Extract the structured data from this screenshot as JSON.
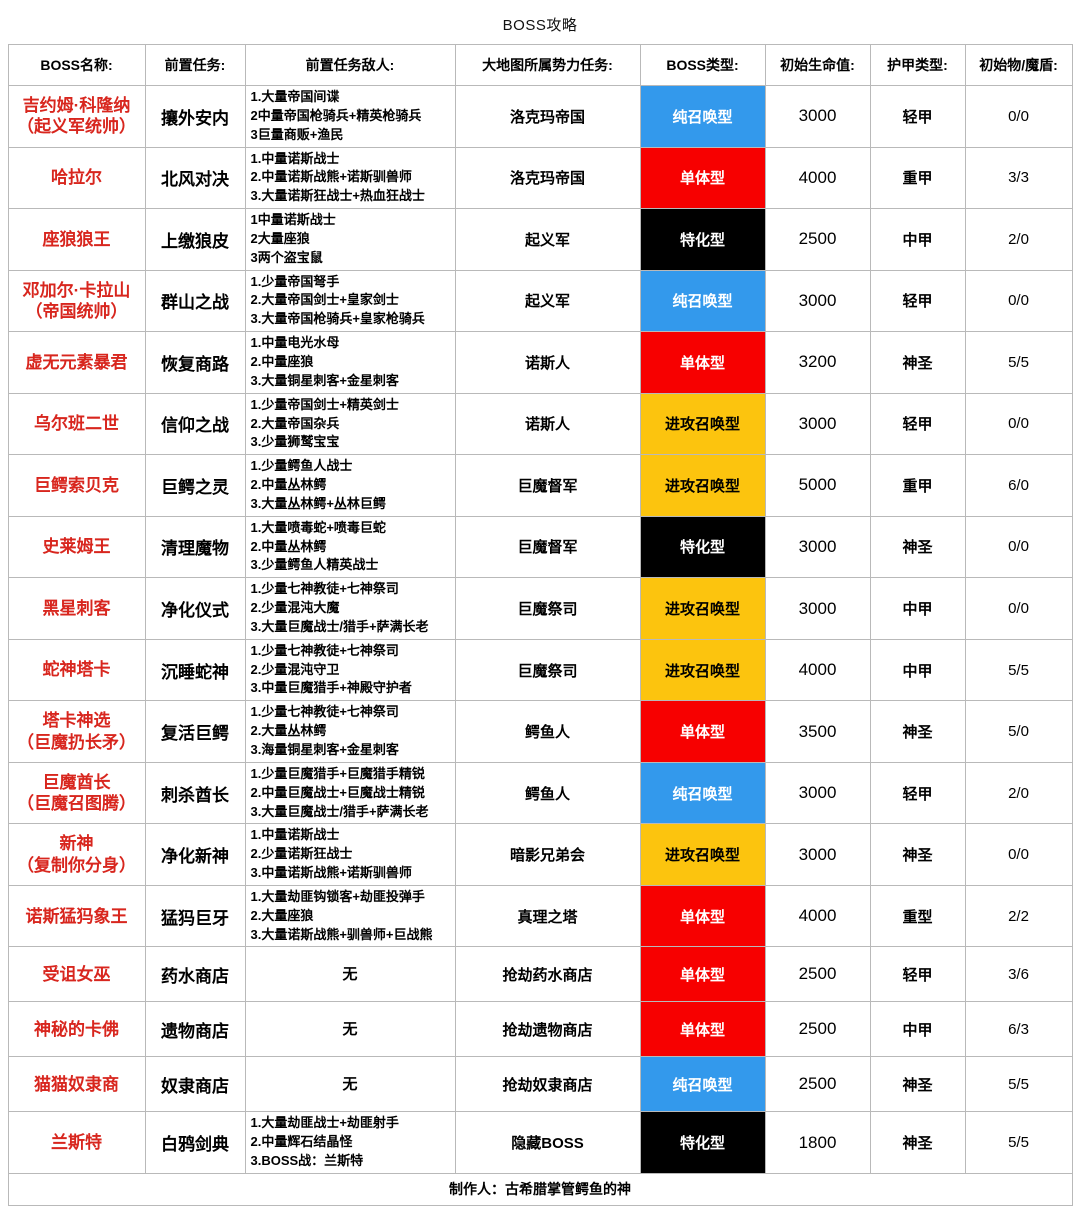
{
  "title": "BOSS攻略",
  "footer": "制作人：古希腊掌管鳄鱼的神",
  "colors": {
    "pure_summon": "#3399EC",
    "single_target": "#F70000",
    "specialized": "#000000",
    "attack_summon": "#FCC40E",
    "boss_name_text": "#D8261E",
    "grid_border": "#B9B9B9"
  },
  "type_text_colors": {
    "pure_summon": "#FFFFFF",
    "single_target": "#FFFFFF",
    "specialized": "#FFFFFF",
    "attack_summon": "#000000"
  },
  "columns": [
    "BOSS名称:",
    "前置任务:",
    "前置任务敌人:",
    "大地图所属势力任务:",
    "BOSS类型:",
    "初始生命值:",
    "护甲类型:",
    "初始物/魔盾:"
  ],
  "rows": [
    {
      "name": "吉约姆·科隆纳\n（起义军统帅）",
      "task": "攘外安内",
      "enemies": "1.大量帝国间谍\n2中量帝国枪骑兵+精英枪骑兵\n3巨量商贩+渔民",
      "faction": "洛克玛帝国",
      "type": "纯召唤型",
      "type_key": "pure_summon",
      "hp": "3000",
      "armor": "轻甲",
      "shield": "0/0"
    },
    {
      "name": "哈拉尔",
      "task": "北风对决",
      "enemies": "1.中量诺斯战士\n2.中量诺斯战熊+诺斯驯兽师\n3.大量诺斯狂战士+热血狂战士",
      "faction": "洛克玛帝国",
      "type": "单体型",
      "type_key": "single_target",
      "hp": "4000",
      "armor": "重甲",
      "shield": "3/3"
    },
    {
      "name": "座狼狼王",
      "task": "上缴狼皮",
      "enemies": "1中量诺斯战士\n2大量座狼\n3两个盗宝鼠",
      "faction": "起义军",
      "type": "特化型",
      "type_key": "specialized",
      "hp": "2500",
      "armor": "中甲",
      "shield": "2/0"
    },
    {
      "name": "邓加尔·卡拉山\n（帝国统帅）",
      "task": "群山之战",
      "enemies": "1.少量帝国弩手\n2.大量帝国剑士+皇家剑士\n3.大量帝国枪骑兵+皇家枪骑兵",
      "faction": "起义军",
      "type": "纯召唤型",
      "type_key": "pure_summon",
      "hp": "3000",
      "armor": "轻甲",
      "shield": "0/0"
    },
    {
      "name": "虚无元素暴君",
      "task": "恢复商路",
      "enemies": "1.中量电光水母\n2.中量座狼\n3.大量铜星刺客+金星刺客",
      "faction": "诺斯人",
      "type": "单体型",
      "type_key": "single_target",
      "hp": "3200",
      "armor": "神圣",
      "shield": "5/5"
    },
    {
      "name": "乌尔班二世",
      "task": "信仰之战",
      "enemies": "1.少量帝国剑士+精英剑士\n2.大量帝国杂兵\n3.少量狮鹫宝宝",
      "faction": "诺斯人",
      "type": "进攻召唤型",
      "type_key": "attack_summon",
      "hp": "3000",
      "armor": "轻甲",
      "shield": "0/0"
    },
    {
      "name": "巨鳄索贝克",
      "task": "巨鳄之灵",
      "enemies": "1.少量鳄鱼人战士\n2.中量丛林鳄\n3.大量丛林鳄+丛林巨鳄",
      "faction": "巨魔督军",
      "type": "进攻召唤型",
      "type_key": "attack_summon",
      "hp": "5000",
      "armor": "重甲",
      "shield": "6/0"
    },
    {
      "name": "史莱姆王",
      "task": "清理魔物",
      "enemies": "1.大量喷毒蛇+喷毒巨蛇\n2.中量丛林鳄\n3.少量鳄鱼人精英战士",
      "faction": "巨魔督军",
      "type": "特化型",
      "type_key": "specialized",
      "hp": "3000",
      "armor": "神圣",
      "shield": "0/0"
    },
    {
      "name": "黑星刺客",
      "task": "净化仪式",
      "enemies": "1.少量七神教徒+七神祭司\n2.少量混沌大魔\n3.大量巨魔战士/猎手+萨满长老",
      "faction": "巨魔祭司",
      "type": "进攻召唤型",
      "type_key": "attack_summon",
      "hp": "3000",
      "armor": "中甲",
      "shield": "0/0"
    },
    {
      "name": "蛇神塔卡",
      "task": "沉睡蛇神",
      "enemies": "1.少量七神教徒+七神祭司\n2.少量混沌守卫\n3.中量巨魔猎手+神殿守护者",
      "faction": "巨魔祭司",
      "type": "进攻召唤型",
      "type_key": "attack_summon",
      "hp": "4000",
      "armor": "中甲",
      "shield": "5/5"
    },
    {
      "name": "塔卡神选\n（巨魔扔长矛）",
      "task": "复活巨鳄",
      "enemies": "1.少量七神教徒+七神祭司\n2.大量丛林鳄\n3.海量铜星刺客+金星刺客",
      "faction": "鳄鱼人",
      "type": "单体型",
      "type_key": "single_target",
      "hp": "3500",
      "armor": "神圣",
      "shield": "5/0"
    },
    {
      "name": "巨魔酋长\n（巨魔召图腾）",
      "task": "刺杀酋长",
      "enemies": "1.少量巨魔猎手+巨魔猎手精锐\n2.中量巨魔战士+巨魔战士精锐\n3.大量巨魔战士/猎手+萨满长老",
      "faction": "鳄鱼人",
      "type": "纯召唤型",
      "type_key": "pure_summon",
      "hp": "3000",
      "armor": "轻甲",
      "shield": "2/0"
    },
    {
      "name": "新神\n（复制你分身）",
      "task": "净化新神",
      "enemies": "1.中量诺斯战士\n2.少量诺斯狂战士\n3.中量诺斯战熊+诺斯驯兽师",
      "faction": "暗影兄弟会",
      "type": "进攻召唤型",
      "type_key": "attack_summon",
      "hp": "3000",
      "armor": "神圣",
      "shield": "0/0"
    },
    {
      "name": "诺斯猛犸象王",
      "task": "猛犸巨牙",
      "enemies": "1.大量劫匪钩锁客+劫匪投弹手\n2.大量座狼\n3.大量诺斯战熊+驯兽师+巨战熊",
      "faction": "真理之塔",
      "type": "单体型",
      "type_key": "single_target",
      "hp": "4000",
      "armor": "重型",
      "shield": "2/2"
    },
    {
      "name": "受诅女巫",
      "task": "药水商店",
      "enemies": "无",
      "faction": "抢劫药水商店",
      "type": "单体型",
      "type_key": "single_target",
      "hp": "2500",
      "armor": "轻甲",
      "shield": "3/6"
    },
    {
      "name": "神秘的卡佛",
      "task": "遗物商店",
      "enemies": "无",
      "faction": "抢劫遗物商店",
      "type": "单体型",
      "type_key": "single_target",
      "hp": "2500",
      "armor": "中甲",
      "shield": "6/3"
    },
    {
      "name": "猫猫奴隶商",
      "task": "奴隶商店",
      "enemies": "无",
      "faction": "抢劫奴隶商店",
      "type": "纯召唤型",
      "type_key": "pure_summon",
      "hp": "2500",
      "armor": "神圣",
      "shield": "5/5"
    },
    {
      "name": "兰斯特",
      "task": "白鸦剑典",
      "enemies": "1.大量劫匪战士+劫匪射手\n2.中量辉石结晶怪\n3.BOSS战：兰斯特",
      "faction": "隐藏BOSS",
      "type": "特化型",
      "type_key": "specialized",
      "hp": "1800",
      "armor": "神圣",
      "shield": "5/5"
    }
  ]
}
